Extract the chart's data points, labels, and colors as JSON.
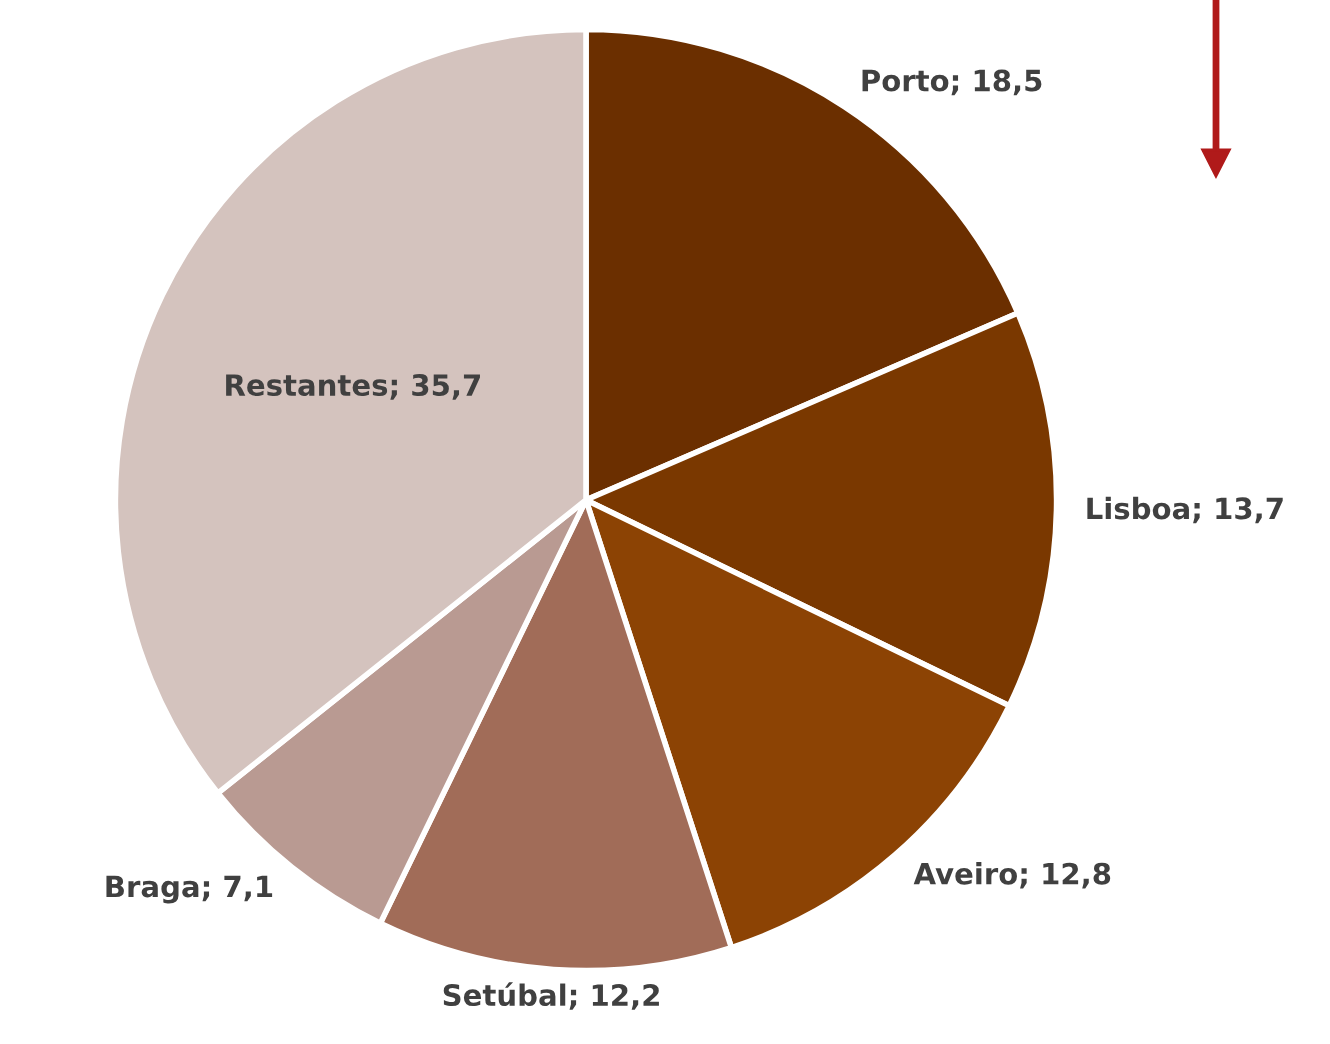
{
  "chart_data": {
    "type": "pie",
    "categories": [
      "Porto",
      "Lisboa",
      "Aveiro",
      "Setúbal",
      "Braga",
      "Restantes"
    ],
    "values": [
      18.5,
      13.7,
      12.8,
      12.2,
      7.1,
      35.7
    ],
    "value_labels": [
      "18,5",
      "13,7",
      "12,8",
      "12,2",
      "7,1",
      "35,7"
    ],
    "colors": [
      "#6b2f00",
      "#7a3800",
      "#8c4304",
      "#a16c58",
      "#b99a92",
      "#d4c3be"
    ],
    "legend": false
  }
}
